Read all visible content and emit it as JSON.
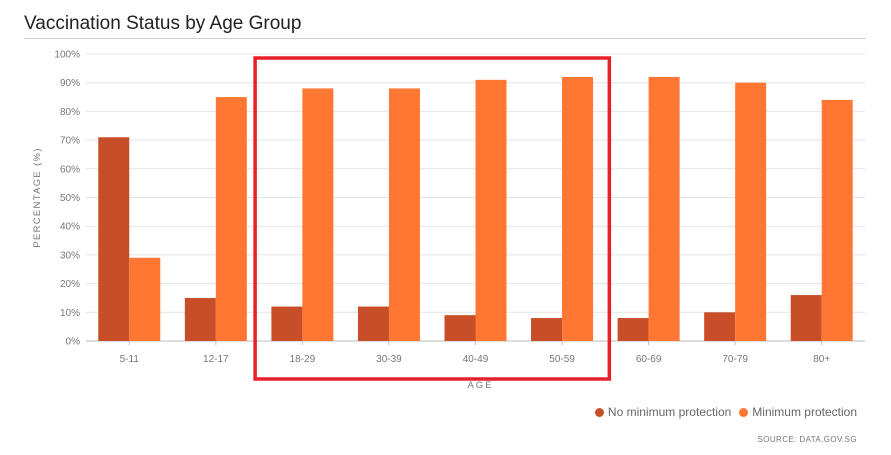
{
  "header": {
    "title": "Vaccination Status by Age Group"
  },
  "footer": {
    "source": "SOURCE: DATA.GOV.SG"
  },
  "chart_data": {
    "type": "bar",
    "title": "Vaccination Status by Age Group",
    "xlabel": "AGE",
    "ylabel": "PERCENTAGE (%)",
    "ylim": [
      0,
      100
    ],
    "yticks": [
      0,
      10,
      20,
      30,
      40,
      50,
      60,
      70,
      80,
      90,
      100
    ],
    "ytick_suffix": "%",
    "grid": true,
    "legend_position": "bottom-right",
    "categories": [
      "5-11",
      "12-17",
      "18-29",
      "30-39",
      "40-49",
      "50-59",
      "60-69",
      "70-79",
      "80+"
    ],
    "series": [
      {
        "name": "No minimum protection",
        "color": "#c74e28",
        "values": [
          71,
          15,
          12,
          12,
          9,
          8,
          8,
          10,
          16
        ]
      },
      {
        "name": "Minimum protection",
        "color": "#ff7733",
        "values": [
          29,
          85,
          88,
          88,
          91,
          92,
          92,
          90,
          84
        ]
      }
    ],
    "annotations": [
      {
        "type": "highlight-box",
        "color": "#e8202a",
        "categories": [
          "18-29",
          "30-39",
          "40-49",
          "50-59"
        ]
      }
    ]
  }
}
